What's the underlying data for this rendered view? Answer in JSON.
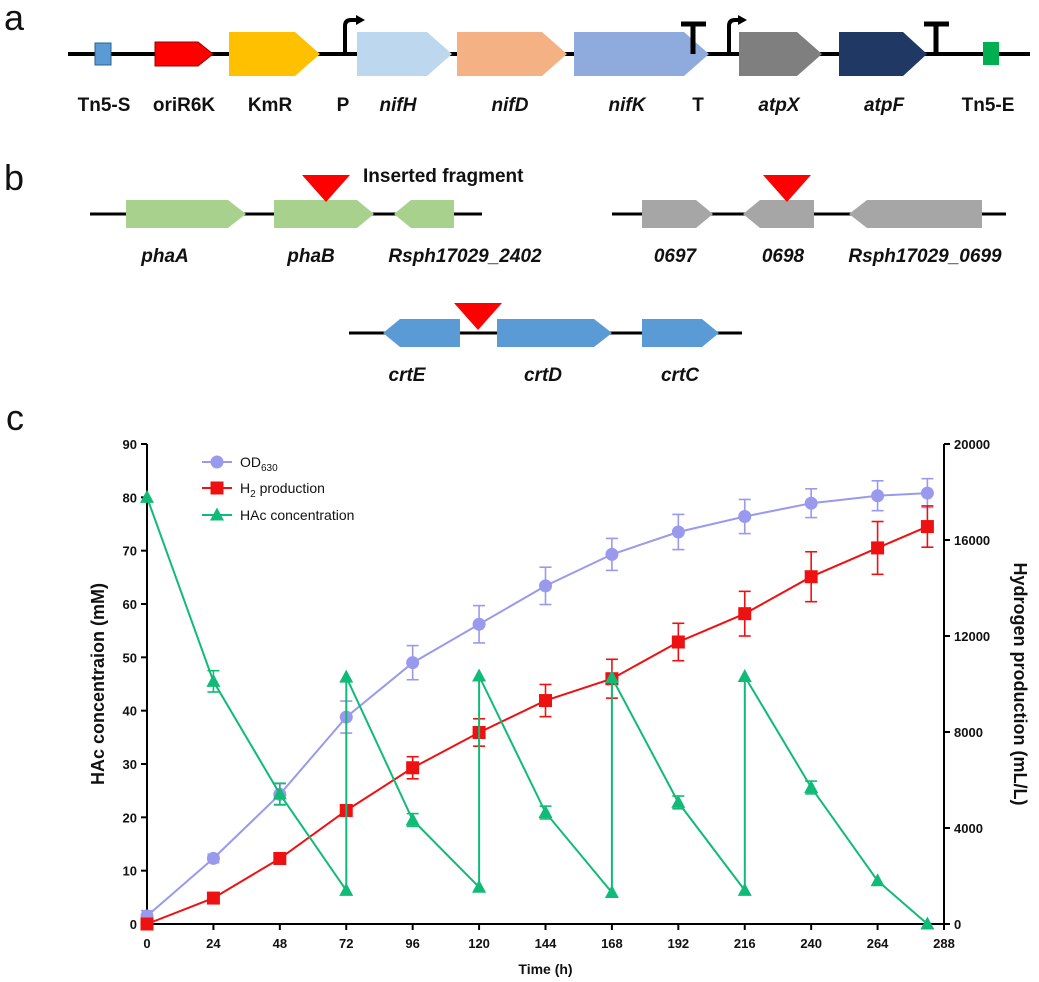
{
  "panels": {
    "a": "a",
    "b": "b",
    "c": "c"
  },
  "colors": {
    "Tn5-S": "#5b9bd5",
    "oriR6K": "#ff0000",
    "KmR": "#ffc000",
    "nifH": "#bdd7ee",
    "nifD": "#f4b183",
    "nifK": "#8faadc",
    "atpX": "#7f7f7f",
    "atpF": "#203864",
    "Tn5-E": "#00b050",
    "pha_cluster": "#a9d18e",
    "gray_cluster": "#a6a6a6",
    "crt_cluster": "#5b9bd5",
    "insertion": "#ff0000",
    "od": "#9999ee",
    "h2": "#ee1111",
    "hac": "#11bb77"
  },
  "panel_a": {
    "labels": {
      "tn5s": "Tn5-S",
      "orir6k": "oriR6K",
      "kmr": "KmR",
      "p": "P",
      "nifh": "nifH",
      "nifd": "nifD",
      "nifk": "nifK",
      "t": "T",
      "atpx": "atpX",
      "atpf": "atpF",
      "tn5e": "Tn5-E"
    }
  },
  "panel_b": {
    "inserted_fragment": "Inserted fragment",
    "labels": {
      "phaa": "phaA",
      "phab": "phaB",
      "r2402": "Rsph17029_2402",
      "g0697": "0697",
      "g0698": "0698",
      "r0699": "Rsph17029_0699",
      "crte": "crtE",
      "crtd": "crtD",
      "crtc": "crtC"
    }
  },
  "chart_data": {
    "type": "line",
    "xlabel": "Time (h)",
    "ylabel": "HAc concentraion (mM)",
    "y2label": "Hydrogen production (mL/L)",
    "xlim": [
      0,
      288
    ],
    "ylim": [
      0,
      90
    ],
    "y2lim": [
      0,
      20000
    ],
    "xticks": [
      0,
      24,
      48,
      72,
      96,
      120,
      144,
      168,
      192,
      216,
      240,
      264,
      288
    ],
    "yticks": [
      0,
      10,
      20,
      30,
      40,
      50,
      60,
      70,
      80,
      90
    ],
    "y2ticks": [
      0,
      4000,
      8000,
      12000,
      16000,
      20000
    ],
    "legend_position": "top-left",
    "legend": {
      "od": {
        "main": "OD",
        "sub": "630"
      },
      "h2": {
        "main": "H",
        "sub": "2",
        "rest": " production"
      },
      "hac": {
        "main": "HAc concentration"
      }
    },
    "series": [
      {
        "key": "od",
        "name": "OD630",
        "axis": "left",
        "marker": "circle",
        "x": [
          0,
          24,
          48,
          72,
          96,
          120,
          144,
          168,
          192,
          216,
          240,
          264,
          282
        ],
        "y": [
          1.5,
          12.3,
          24.3,
          38.8,
          49,
          56.2,
          63.4,
          69.3,
          73.5,
          76.4,
          78.9,
          80.3,
          80.8
        ],
        "err": [
          1,
          0.8,
          2,
          3,
          3.2,
          3.5,
          3.5,
          3,
          3.3,
          3.2,
          2.7,
          2.8,
          2.7
        ]
      },
      {
        "key": "h2",
        "name": "H2 production",
        "axis": "right",
        "marker": "square",
        "x": [
          0,
          24,
          48,
          72,
          96,
          120,
          144,
          168,
          192,
          216,
          240,
          264,
          282
        ],
        "y": [
          0,
          1080,
          2730,
          4730,
          6510,
          7980,
          9310,
          10220,
          11750,
          12930,
          14470,
          15670,
          16560
        ],
        "err": [
          0,
          0,
          0,
          0,
          460,
          570,
          670,
          810,
          780,
          930,
          1040,
          1100,
          860
        ]
      },
      {
        "key": "hac",
        "name": "HAc concentration",
        "axis": "left",
        "marker": "triangle",
        "x": [
          0,
          24,
          48,
          72,
          72,
          96,
          120,
          120,
          144,
          168,
          168,
          192,
          216,
          216,
          240,
          264,
          282
        ],
        "y": [
          80,
          45.5,
          24.4,
          6.3,
          46.3,
          19.5,
          6.9,
          46.5,
          20.9,
          5.9,
          46.2,
          22.8,
          6.3,
          46.4,
          25.6,
          8.1,
          0
        ],
        "err": [
          0,
          2,
          2,
          0,
          0,
          1.2,
          0,
          0,
          1.2,
          0,
          0,
          1.2,
          0,
          0,
          1.2,
          0,
          0
        ]
      }
    ]
  }
}
